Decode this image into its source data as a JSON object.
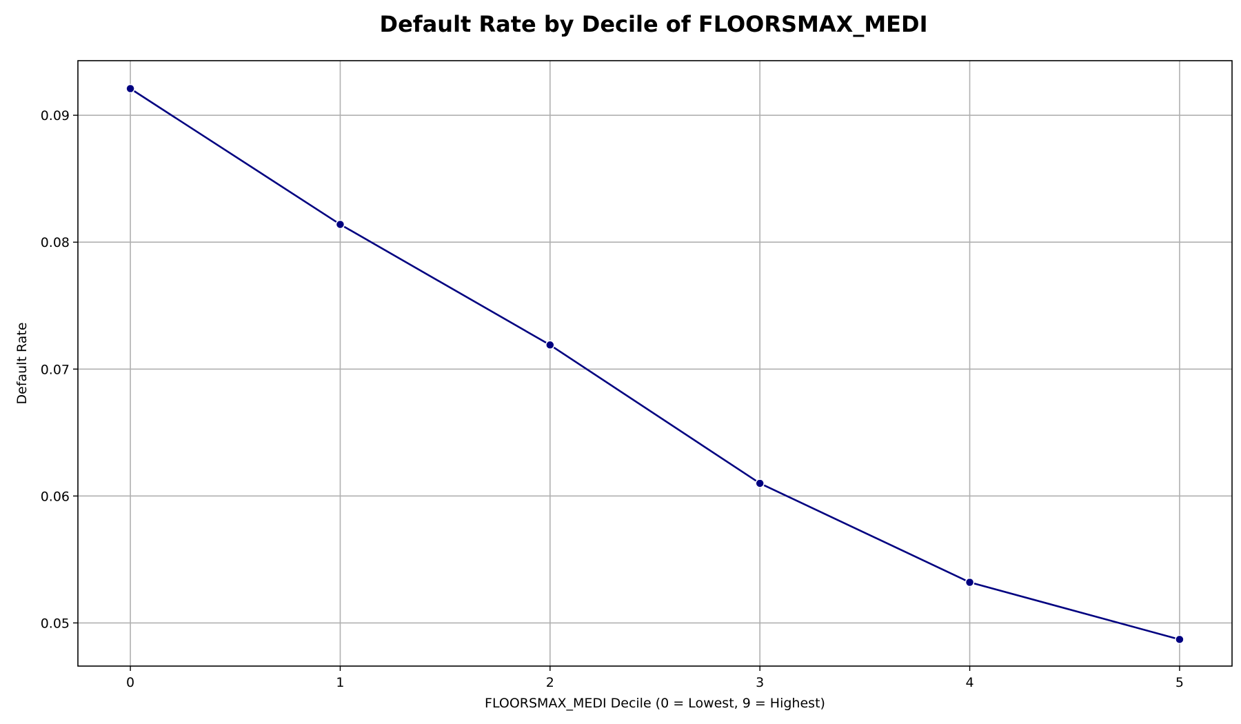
{
  "chart_data": {
    "type": "line",
    "title": "Default Rate by Decile of FLOORSMAX_MEDI",
    "xlabel": "FLOORSMAX_MEDI Decile (0 = Lowest, 9 = Highest)",
    "ylabel": "Default Rate",
    "x": [
      0,
      1,
      2,
      3,
      4,
      5
    ],
    "series": [
      {
        "values": [
          0.0921,
          0.0814,
          0.0719,
          0.061,
          0.0532,
          0.0487
        ]
      }
    ],
    "xlim": [
      -0.25,
      5.25
    ],
    "ylim": [
      0.0466,
      0.0943
    ],
    "xticks": [
      "0",
      "1",
      "2",
      "3",
      "4",
      "5"
    ],
    "yticks": [
      "0.05",
      "0.06",
      "0.07",
      "0.08",
      "0.09"
    ],
    "grid": true,
    "line_color": "#000080",
    "marker_color": "#000080",
    "marker_edge_color": "#ffffff"
  }
}
